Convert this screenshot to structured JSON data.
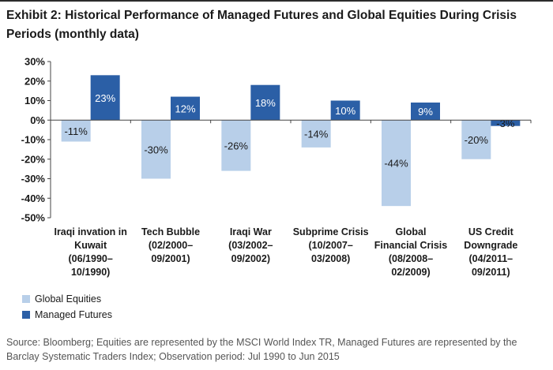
{
  "title": "Exhibit 2: Historical Performance of Managed Futures and Global Equities During Crisis Periods (monthly data)",
  "source_note": "Source: Bloomberg; Equities are represented by the MSCI World Index TR, Managed Futures are represented by the Barclay Systematic Traders Index; Observation period: Jul 1990 to Jun 2015",
  "colors": {
    "global_equities": "#b8cfe9",
    "managed_futures": "#2b5fa6",
    "axis": "#444444"
  },
  "chart_data": {
    "type": "bar",
    "title": "",
    "xlabel": "",
    "ylabel": "",
    "ylim": [
      -50,
      30
    ],
    "yticks": [
      30,
      20,
      10,
      0,
      -10,
      -20,
      -30,
      -40,
      -50
    ],
    "ytick_labels": [
      "30%",
      "20%",
      "10%",
      "0%",
      "-10%",
      "-20%",
      "-30%",
      "-40%",
      "-50%"
    ],
    "grid": false,
    "legend_position": "bottom-left",
    "categories": [
      [
        "Iraqi invation in",
        "Kuwait",
        "(06/1990–",
        "10/1990)"
      ],
      [
        "Tech Bubble",
        "(02/2000–",
        "09/2001)"
      ],
      [
        "Iraqi War",
        "(03/2002–",
        "09/2002)"
      ],
      [
        "Subprime Crisis",
        "(10/2007–",
        "03/2008)"
      ],
      [
        "Global",
        "Financial Crisis",
        "(08/2008–",
        "02/2009)"
      ],
      [
        "US Credit",
        "Downgrade",
        "(04/2011–",
        "09/2011)"
      ]
    ],
    "series": [
      {
        "name": "Global Equities",
        "values": [
          -11,
          -30,
          -26,
          -14,
          -44,
          -20
        ],
        "labels": [
          "-11%",
          "-30%",
          "-26%",
          "-14%",
          "-44%",
          "-20%"
        ]
      },
      {
        "name": "Managed Futures",
        "values": [
          23,
          12,
          18,
          10,
          9,
          -3
        ],
        "labels": [
          "23%",
          "12%",
          "18%",
          "10%",
          "9%",
          "-3%"
        ]
      }
    ]
  }
}
